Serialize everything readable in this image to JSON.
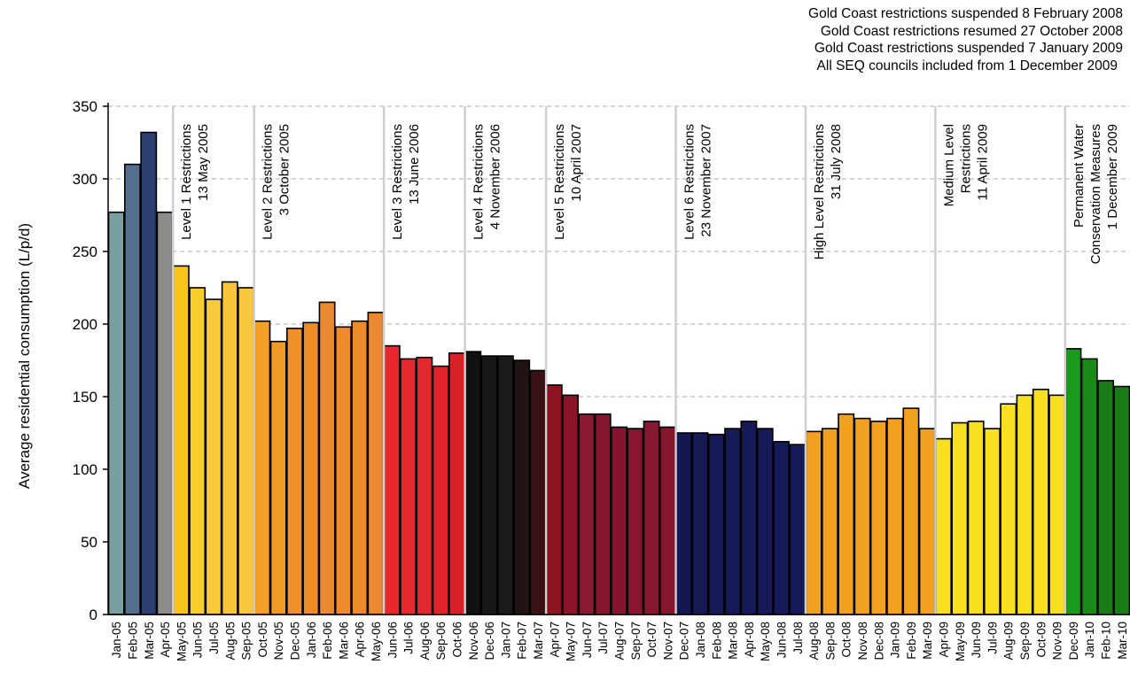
{
  "notes": [
    "Gold Coast restrictions suspended 8 February 2008",
    "Gold Coast restrictions resumed 27 October 2008",
    "Gold Coast restrictions suspended 7 January 2009",
    "All SEQ councils included from 1 December 2009"
  ],
  "chart_data": {
    "type": "bar",
    "title": "",
    "xlabel": "",
    "ylabel": "Average residential consumption (L/p/d)",
    "ylim": [
      0,
      350
    ],
    "yticks": [
      0,
      50,
      100,
      150,
      200,
      250,
      300,
      350
    ],
    "grid": "horizontal dashed",
    "categories": [
      "Jan-05",
      "Feb-05",
      "Mar-05",
      "Apr-05",
      "May-05",
      "Jun-05",
      "Jul-05",
      "Aug-05",
      "Sep-05",
      "Oct-05",
      "Nov-05",
      "Dec-05",
      "Jan-06",
      "Feb-06",
      "Mar-06",
      "Apr-06",
      "May-06",
      "Jun-06",
      "Jul-06",
      "Aug-06",
      "Sep-06",
      "Oct-06",
      "Nov-06",
      "Dec-06",
      "Jan-07",
      "Feb-07",
      "Mar-07",
      "Apr-07",
      "May-07",
      "Jun-07",
      "Jul-07",
      "Aug-07",
      "Sep-07",
      "Oct-07",
      "Nov-07",
      "Dec-07",
      "Jan-08",
      "Feb-08",
      "Mar-08",
      "Apr-08",
      "May-08",
      "Jun-08",
      "Jul-08",
      "Aug-08",
      "Sep-08",
      "Oct-08",
      "Nov-08",
      "Dec-08",
      "Jan-09",
      "Feb-09",
      "Mar-09",
      "Apr-09",
      "May-09",
      "Jun-09",
      "Jul-09",
      "Aug-09",
      "Sep-09",
      "Oct-09",
      "Nov-09",
      "Dec-09",
      "Jan-10",
      "Feb-10",
      "Mar-10"
    ],
    "values": [
      277,
      310,
      332,
      277,
      240,
      225,
      217,
      229,
      225,
      202,
      188,
      197,
      201,
      215,
      198,
      202,
      208,
      185,
      176,
      177,
      171,
      180,
      181,
      178,
      178,
      175,
      168,
      158,
      151,
      138,
      138,
      129,
      128,
      133,
      129,
      125,
      125,
      124,
      128,
      133,
      128,
      119,
      117,
      126,
      128,
      138,
      135,
      133,
      135,
      142,
      128,
      121,
      132,
      133,
      128,
      145,
      151,
      155,
      151,
      183,
      176,
      161,
      157
    ],
    "bar_colors": [
      "#7a9fa0",
      "#556f8f",
      "#2c4170",
      "#8c8c8c",
      "#f9c419",
      "#f9cd2e",
      "#f8c93a",
      "#f8c43a",
      "#f7c83f",
      "#f4a028",
      "#f29a26",
      "#ef9028",
      "#ee8b26",
      "#ea8a30",
      "#ed8a2d",
      "#ec8a2e",
      "#eb8930",
      "#e8262c",
      "#e42a2e",
      "#e42830",
      "#e1242c",
      "#d82029",
      "#111111",
      "#171717",
      "#1a1a1a",
      "#221315",
      "#3a1216",
      "#8e1421",
      "#8c1428",
      "#881a32",
      "#861530",
      "#85152e",
      "#8a1530",
      "#86182f",
      "#84162e",
      "#151850",
      "#161a55",
      "#161a58",
      "#161a58",
      "#161a58",
      "#161a58",
      "#161a58",
      "#161a58",
      "#f2a020",
      "#f2a020",
      "#f2a020",
      "#f2a020",
      "#f2a020",
      "#f2a020",
      "#f2a020",
      "#f2a020",
      "#f8e020",
      "#f8e020",
      "#f8e020",
      "#f8e020",
      "#f8e020",
      "#f8e020",
      "#f8e020",
      "#f8e020",
      "#1a9a1a",
      "#1a8a18",
      "#1a7c16",
      "#1a7c16"
    ],
    "phases": [
      {
        "start": 4,
        "lines": [
          "Level 1 Restrictions",
          "13 May 2005"
        ]
      },
      {
        "start": 9,
        "lines": [
          "Level 2 Restrictions",
          "3 October  2005"
        ]
      },
      {
        "start": 17,
        "lines": [
          "Level 3 Restrictions",
          "13 June 2006"
        ]
      },
      {
        "start": 22,
        "lines": [
          "Level 4 Restrictions",
          "4 November 2006"
        ]
      },
      {
        "start": 27,
        "lines": [
          "Level 5 Restrictions",
          "10 April 2007"
        ]
      },
      {
        "start": 35,
        "lines": [
          "Level 6 Restrictions",
          "23 November 2007"
        ]
      },
      {
        "start": 43,
        "lines": [
          "High Level Restrictions",
          "31 July 2008"
        ]
      },
      {
        "start": 51,
        "lines": [
          "Medium Level",
          "Restrictions",
          "11 April 2009"
        ]
      },
      {
        "start": 59,
        "lines": [
          "Permanent Water",
          "Conservation Measures",
          "1 December 2009"
        ]
      }
    ]
  }
}
